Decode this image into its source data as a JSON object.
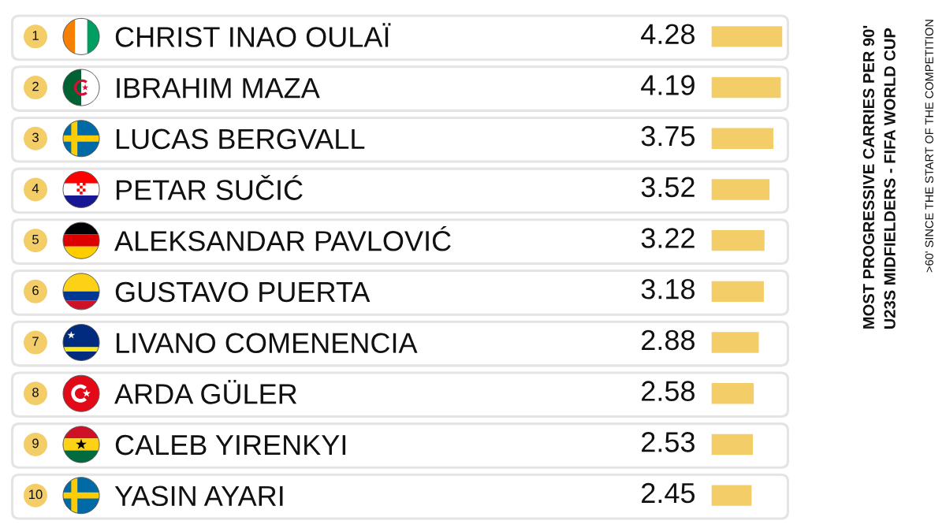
{
  "chart_data": {
    "type": "bar",
    "orientation": "horizontal",
    "title": "MOST PROGRESSIVE CARRIES PER 90'\nU23S MIDFIELDERS - FIFA WORLD CUP",
    "subtitle": ">60' SINCE THE START OF THE COMPETITION",
    "categories": [
      "CHRIST INAO OULAÏ",
      "IBRAHIM MAZA",
      "LUCAS BERGVALL",
      "PETAR SUČIĆ",
      "ALEKSANDAR PAVLOVIĆ",
      "GUSTAVO PUERTA",
      "LIVANO COMENENCIA",
      "ARDA GÜLER",
      "CALEB YIRENKYI",
      "YASIN AYARI"
    ],
    "values": [
      4.28,
      4.19,
      3.75,
      3.52,
      3.22,
      3.18,
      2.88,
      2.58,
      2.53,
      2.45
    ],
    "color": "#f3cd67",
    "data_labels": true,
    "tick_labels": "y",
    "annotations": [
      "1",
      "2",
      "3",
      "4",
      "5",
      "6",
      "7",
      "8",
      "9",
      "10"
    ]
  }
}
